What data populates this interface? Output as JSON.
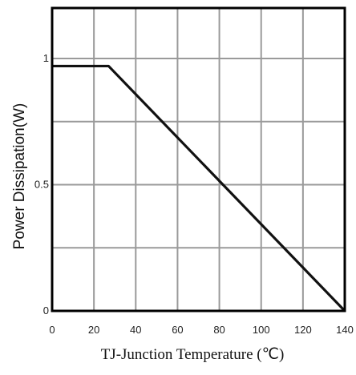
{
  "chart_data": {
    "type": "line",
    "title": "",
    "xlabel": "TJ-Junction Temperature (℃)",
    "ylabel": "Power Dissipation(W)",
    "xlim": [
      0,
      140
    ],
    "ylim": [
      0,
      1.2
    ],
    "x_ticks": [
      0,
      20,
      40,
      60,
      80,
      100,
      120,
      140
    ],
    "x_tick_labels": [
      "0",
      "20",
      "40",
      "60",
      "80",
      "100",
      "120",
      "140"
    ],
    "y_ticks": [
      0,
      0.5,
      1
    ],
    "y_tick_labels": [
      "0",
      "0.5",
      "1"
    ],
    "grid": true,
    "grid_x_step": 20,
    "grid_y_step": 0.25,
    "series": [
      {
        "values": [
          {
            "x": 0,
            "y": 0.97
          },
          {
            "x": 27,
            "y": 0.97
          },
          {
            "x": 140,
            "y": 0
          }
        ]
      }
    ]
  }
}
